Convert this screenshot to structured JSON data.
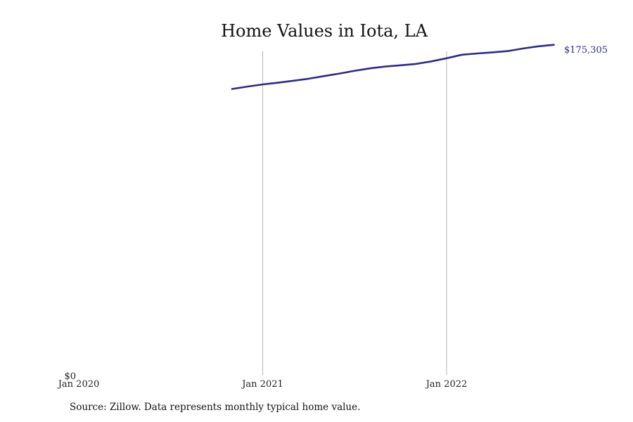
{
  "chart_data": {
    "type": "line",
    "title": "Home Values in Iota, LA",
    "xlabel": "",
    "ylabel": "",
    "x_ticks": [
      "Jan 2020",
      "Jan 2021",
      "Jan 2022"
    ],
    "y_ticks": [
      "$0"
    ],
    "ylim": [
      0,
      175305
    ],
    "xlim": [
      "2020-01",
      "2022-11"
    ],
    "grid": "vertical lines at yearly ticks",
    "series": [
      {
        "color": "#2e2a8c",
        "points": [
          {
            "x": "2020-11",
            "y": 156000
          },
          {
            "x": "2020-12",
            "y": 157300
          },
          {
            "x": "2021-01",
            "y": 158500
          },
          {
            "x": "2021-02",
            "y": 159400
          },
          {
            "x": "2021-03",
            "y": 160500
          },
          {
            "x": "2021-04",
            "y": 161600
          },
          {
            "x": "2021-05",
            "y": 163000
          },
          {
            "x": "2021-06",
            "y": 164400
          },
          {
            "x": "2021-07",
            "y": 165900
          },
          {
            "x": "2021-08",
            "y": 167200
          },
          {
            "x": "2021-09",
            "y": 168200
          },
          {
            "x": "2021-10",
            "y": 168900
          },
          {
            "x": "2021-11",
            "y": 169600
          },
          {
            "x": "2021-12",
            "y": 171000
          },
          {
            "x": "2022-01",
            "y": 172700
          },
          {
            "x": "2022-02",
            "y": 174600
          },
          {
            "x": "2022-03",
            "y": 175300
          },
          {
            "x": "2022-04",
            "y": 175900
          },
          {
            "x": "2022-05",
            "y": 176600
          },
          {
            "x": "2022-06",
            "y": 178000
          },
          {
            "x": "2022-07",
            "y": 179200
          },
          {
            "x": "2022-08",
            "y": 180000
          }
        ]
      }
    ],
    "end_label": "$175,305",
    "source_note": "Source: Zillow. Data represents monthly typical home value."
  }
}
